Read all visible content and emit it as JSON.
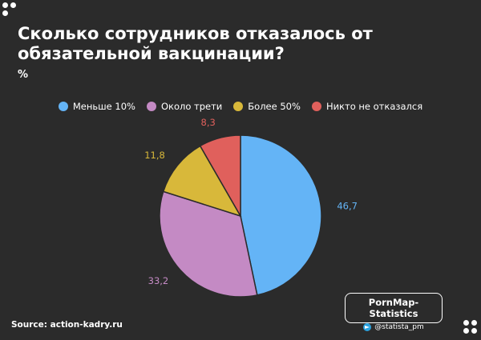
{
  "header": {
    "title": "Сколько сотрудников отказалось от обязательной вакцинации?",
    "unit": "%"
  },
  "chart_data": {
    "type": "pie",
    "categories": [
      "Меньше 10%",
      "Около трети",
      "Более 50%",
      "Никто не отказался"
    ],
    "values": [
      46.7,
      33.2,
      11.8,
      8.3
    ],
    "value_labels": [
      "46,7",
      "33,2",
      "11,8",
      "8,3"
    ],
    "colors": [
      "#64b4f6",
      "#c48ac4",
      "#d8b83a",
      "#e0605c"
    ],
    "title": "Сколько сотрудников отказалось от обязательной вакцинации?",
    "legend_position": "top",
    "start": "top",
    "direction": "clockwise"
  },
  "footer": {
    "source": "Source: action-kadry.ru",
    "badge_name": "PornMap-Statistics",
    "badge_handle": "@statista_pm"
  }
}
